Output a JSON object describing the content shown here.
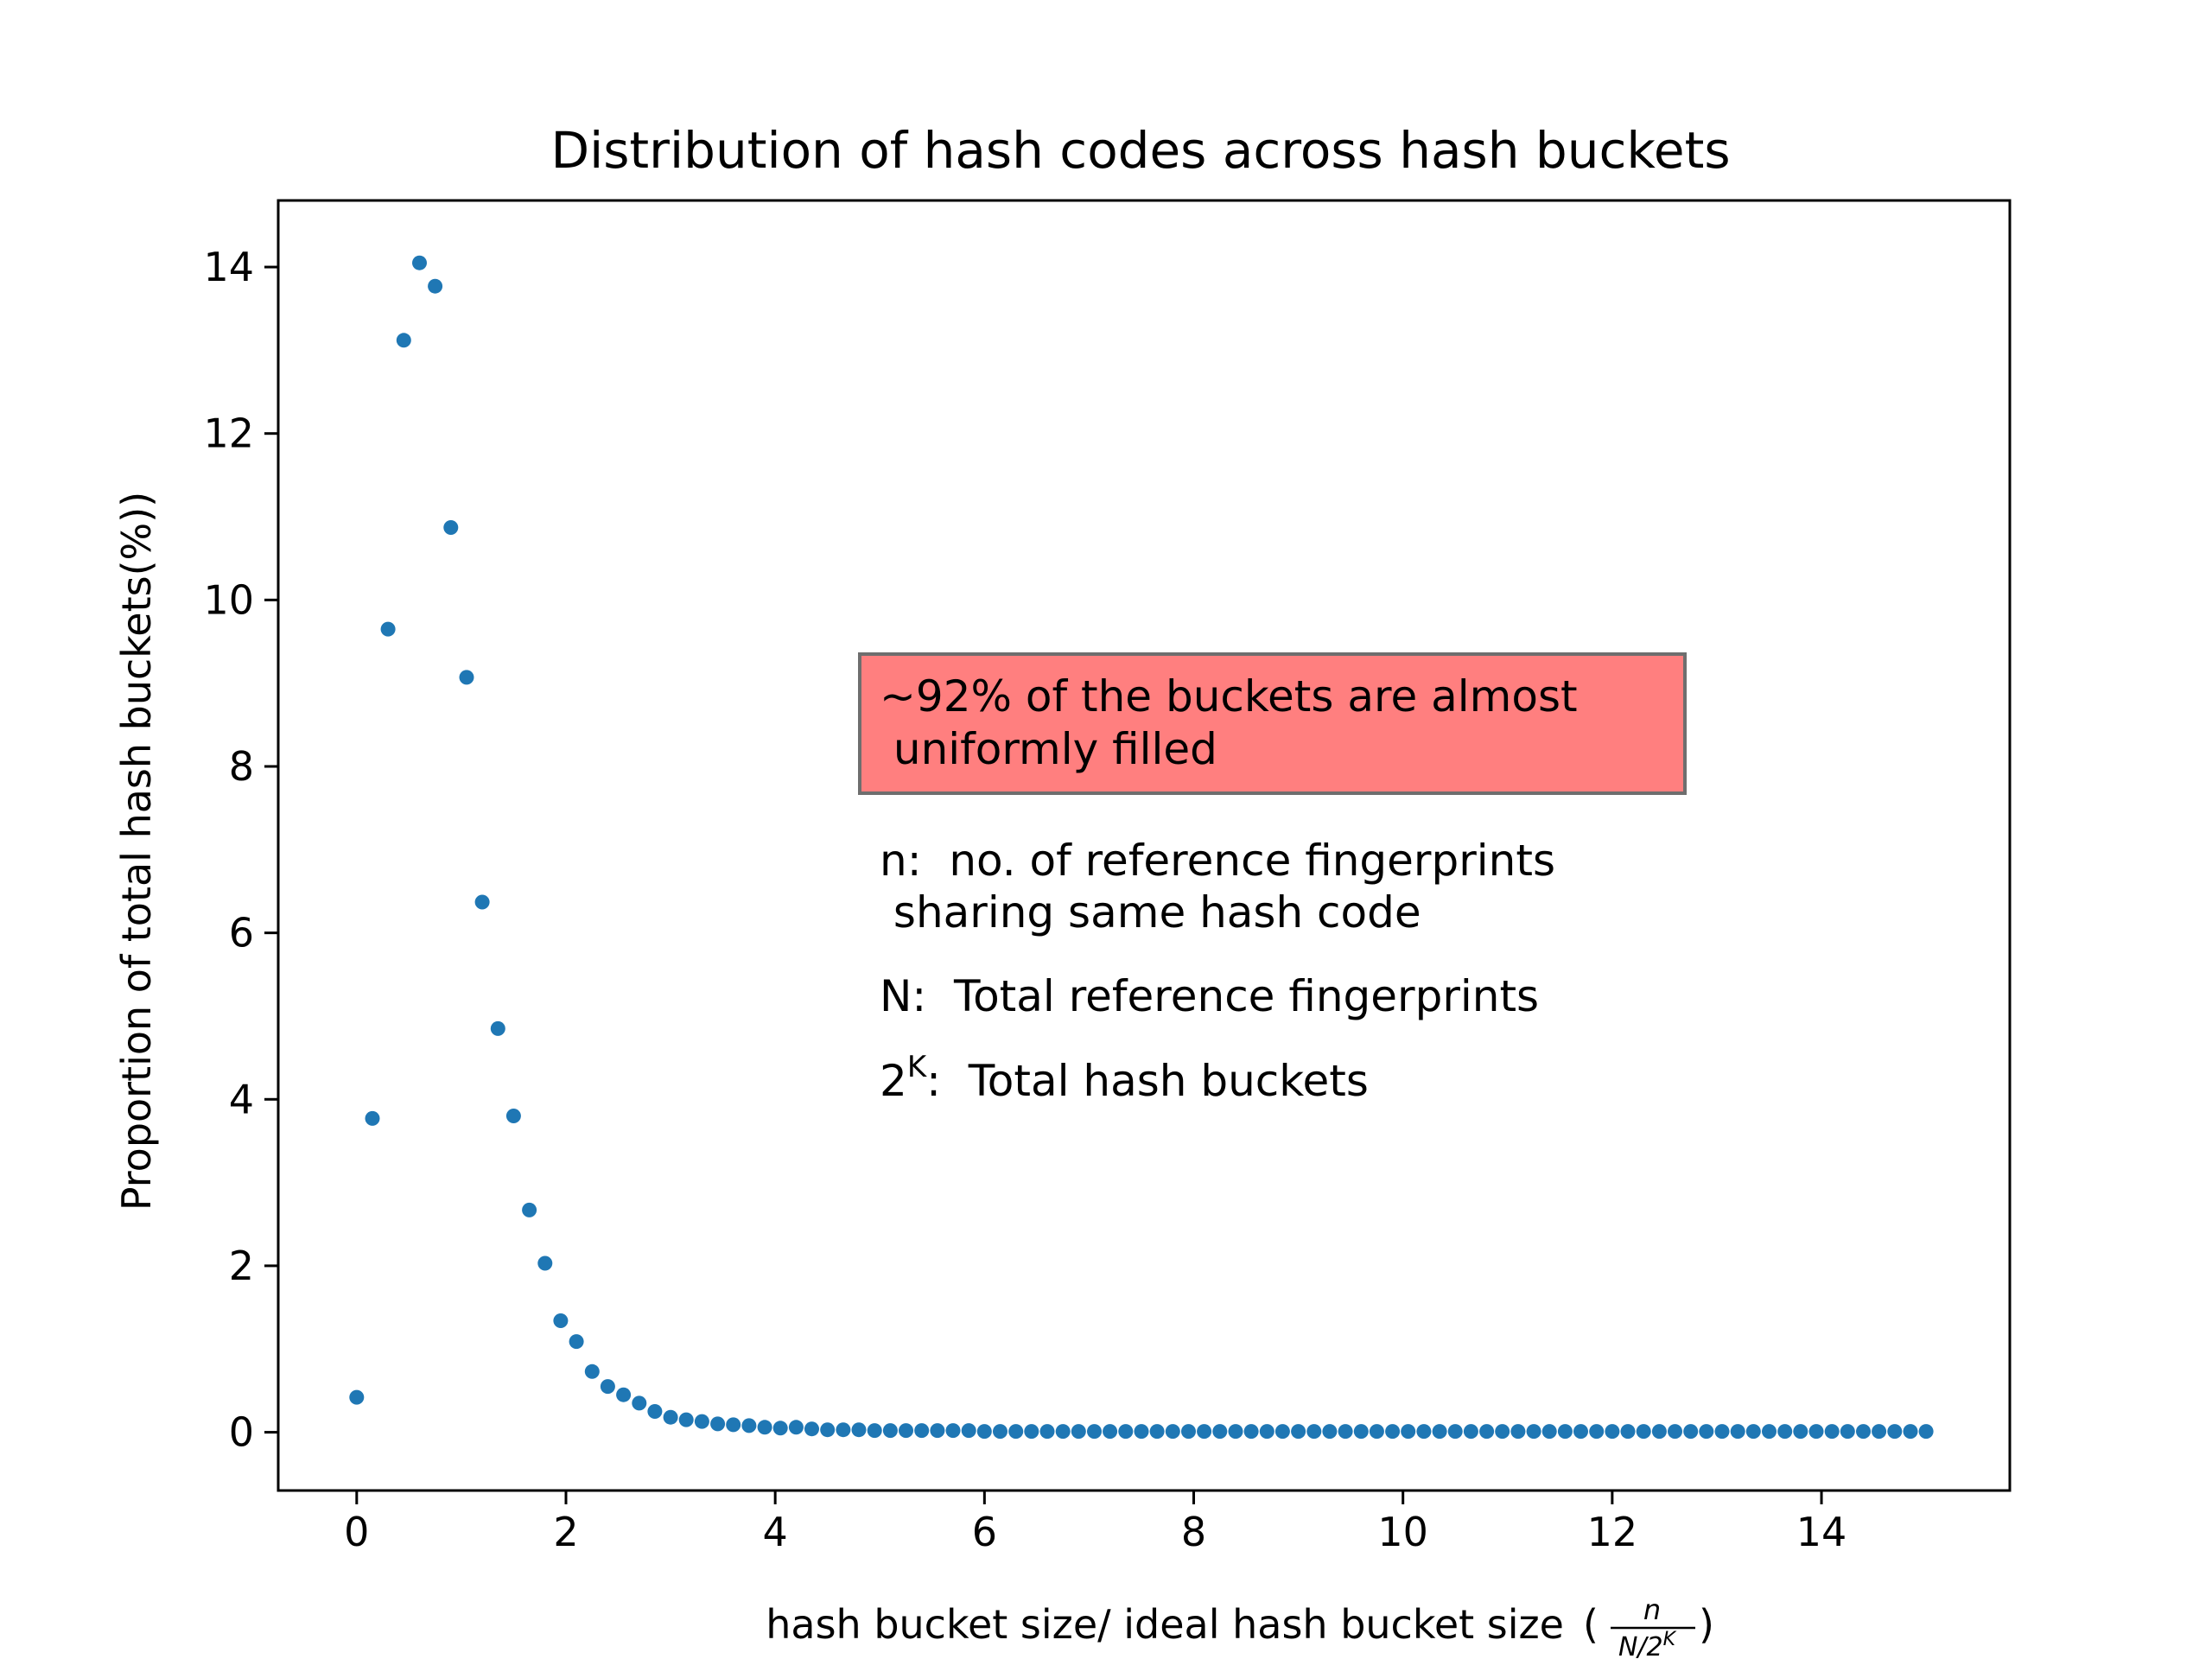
{
  "chart_data": {
    "type": "scatter",
    "title": "Distribution of hash codes across hash buckets",
    "xlabel": "hash bucket size/ ideal hash bucket size",
    "xlabel_fraction": {
      "open": "(",
      "numerator": "n",
      "denominator_base": "N/2",
      "denominator_exp": "K",
      "close": ")"
    },
    "ylabel": "Proportion of total hash buckets(%))",
    "xlim": [
      -0.75,
      15.8
    ],
    "ylim": [
      -0.7,
      14.8
    ],
    "xticks": [
      0,
      2,
      4,
      6,
      8,
      10,
      12,
      14
    ],
    "yticks": [
      0,
      2,
      4,
      6,
      8,
      10,
      12,
      14
    ],
    "grid": false,
    "marker_color": "#1f77b4",
    "series": [
      {
        "x": [
          0.0,
          0.15,
          0.3,
          0.45,
          0.6,
          0.75,
          0.9,
          1.05,
          1.2,
          1.35,
          1.5,
          1.65,
          1.8,
          1.95,
          2.1,
          2.25,
          2.4,
          2.55,
          2.7,
          2.85,
          3.0,
          3.15,
          3.3,
          3.45,
          3.6,
          3.75,
          3.9,
          4.05,
          4.2,
          4.35,
          4.5,
          4.65,
          4.8,
          4.95,
          5.1,
          5.25,
          5.4,
          5.55,
          5.7,
          5.85,
          6.0,
          6.15,
          6.3,
          6.45,
          6.6,
          6.75,
          6.9,
          7.05,
          7.2,
          7.35,
          7.5,
          7.65,
          7.8,
          7.95,
          8.1,
          8.25,
          8.4,
          8.55,
          8.7,
          8.85,
          9.0,
          9.15,
          9.3,
          9.45,
          9.6,
          9.75,
          9.9,
          10.05,
          10.2,
          10.35,
          10.5,
          10.65,
          10.8,
          10.95,
          11.1,
          11.25,
          11.4,
          11.55,
          11.7,
          11.85,
          12.0,
          12.15,
          12.3,
          12.45,
          12.6,
          12.75,
          12.9,
          13.05,
          13.2,
          13.35,
          13.5,
          13.65,
          13.8,
          13.95,
          14.1,
          14.25,
          14.4,
          14.55,
          14.7,
          14.85,
          15.0
        ],
        "y": [
          0.42,
          3.77,
          9.65,
          13.12,
          14.05,
          13.77,
          10.87,
          9.07,
          6.37,
          4.85,
          3.8,
          2.67,
          2.03,
          1.34,
          1.09,
          0.73,
          0.55,
          0.45,
          0.35,
          0.25,
          0.18,
          0.15,
          0.13,
          0.1,
          0.09,
          0.08,
          0.06,
          0.05,
          0.06,
          0.04,
          0.03,
          0.03,
          0.03,
          0.02,
          0.02,
          0.02,
          0.02,
          0.02,
          0.02,
          0.02,
          0.01,
          0.01,
          0.01,
          0.01,
          0.01,
          0.01,
          0.01,
          0.01,
          0.01,
          0.01,
          0.01,
          0.01,
          0.01,
          0.01,
          0.01,
          0.01,
          0.01,
          0.01,
          0.01,
          0.01,
          0.01,
          0.01,
          0.01,
          0.01,
          0.01,
          0.01,
          0.01,
          0.01,
          0.01,
          0.01,
          0.01,
          0.01,
          0.01,
          0.01,
          0.01,
          0.01,
          0.01,
          0.01,
          0.01,
          0.01,
          0.01,
          0.01,
          0.01,
          0.01,
          0.01,
          0.01,
          0.01,
          0.01,
          0.01,
          0.01,
          0.01,
          0.01,
          0.01,
          0.01,
          0.01,
          0.01,
          0.01,
          0.01,
          0.01,
          0.01,
          0.01
        ]
      }
    ],
    "annotations": {
      "highlight_box": {
        "lines": [
          "~92% of the buckets are almost",
          " uniformly filled"
        ],
        "background": "#ff7f7f"
      },
      "legend_notes": [
        {
          "lines": [
            "n:  no. of reference fingerprints",
            " sharing same hash code"
          ]
        },
        {
          "lines": [
            "N:  Total reference fingerprints"
          ]
        },
        {
          "base": "2",
          "sup": "K",
          "rest": ":  Total hash buckets"
        }
      ]
    }
  }
}
